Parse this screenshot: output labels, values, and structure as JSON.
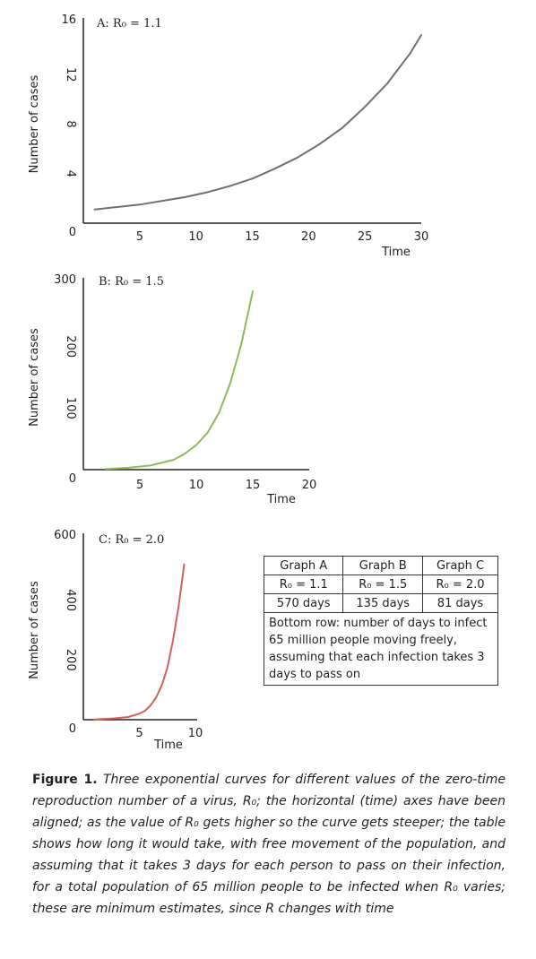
{
  "chart_data": [
    {
      "type": "line",
      "title": "A: R₀ = 1.1",
      "ylabel": "Number of cases",
      "xlabel": "Time",
      "xlim": [
        0,
        30
      ],
      "ylim": [
        0,
        16
      ],
      "xticks": [
        5,
        10,
        15,
        20,
        25,
        30
      ],
      "yticks": [
        0,
        4,
        8,
        12,
        16
      ],
      "color": "#707070",
      "series": [
        {
          "x": [
            1,
            3,
            5,
            7,
            9,
            11,
            13,
            15,
            17,
            19,
            21,
            23,
            25,
            27,
            29,
            30
          ],
          "values": [
            1.1,
            1.3,
            1.5,
            1.8,
            2.1,
            2.5,
            3.0,
            3.6,
            4.4,
            5.3,
            6.4,
            7.7,
            9.4,
            11.3,
            13.7,
            15.2
          ]
        }
      ]
    },
    {
      "type": "line",
      "title": "B: R₀ = 1.5",
      "ylabel": "Number of cases",
      "xlabel": "Time",
      "xlim": [
        0,
        20
      ],
      "ylim": [
        0,
        300
      ],
      "xticks": [
        5,
        10,
        15,
        20
      ],
      "yticks": [
        0,
        100,
        200,
        300
      ],
      "color": "#8dbb5a",
      "series": [
        {
          "x": [
            2,
            4,
            6,
            8,
            9,
            10,
            11,
            12,
            13,
            14,
            15
          ],
          "values": [
            1,
            3,
            7,
            16,
            26,
            40,
            60,
            92,
            140,
            205,
            290
          ]
        }
      ]
    },
    {
      "type": "line",
      "title": "C: R₀ = 2.0",
      "ylabel": "Number of cases",
      "xlabel": "Time",
      "xlim": [
        0,
        10
      ],
      "ylim": [
        0,
        600
      ],
      "xticks": [
        5,
        10
      ],
      "yticks": [
        0,
        200,
        400,
        600
      ],
      "color": "#d4605a",
      "series": [
        {
          "x": [
            1,
            2,
            3,
            4,
            5,
            5.5,
            6,
            6.5,
            7,
            7.5,
            8,
            8.5,
            9
          ],
          "values": [
            1,
            3,
            5,
            9,
            20,
            30,
            48,
            75,
            115,
            175,
            265,
            380,
            520
          ]
        }
      ]
    }
  ],
  "table": {
    "headers": [
      "Graph A",
      "Graph B",
      "Graph C"
    ],
    "r_values": [
      "R₀ = 1.1",
      "R₀ = 1.5",
      "R₀ = 2.0"
    ],
    "days": [
      "570 days",
      "135 days",
      "81 days"
    ],
    "note": "Bottom row: number of days to infect 65 million people moving freely, assuming that each infection takes 3 days to pass on"
  },
  "caption": {
    "label": "Figure 1.",
    "text": " Three exponential curves for different values of the zero-time reproduction number of a virus, R₀; the horizontal (time) axes have been aligned; as the value of R₀ gets higher so the curve gets steeper; the table shows how long it would take, with free movement of the population, and assuming that it takes 3 days for each person to pass on their infection, for a total population of 65 million people to be infected when R₀ varies; these are minimum estimates, since R changes with time"
  }
}
